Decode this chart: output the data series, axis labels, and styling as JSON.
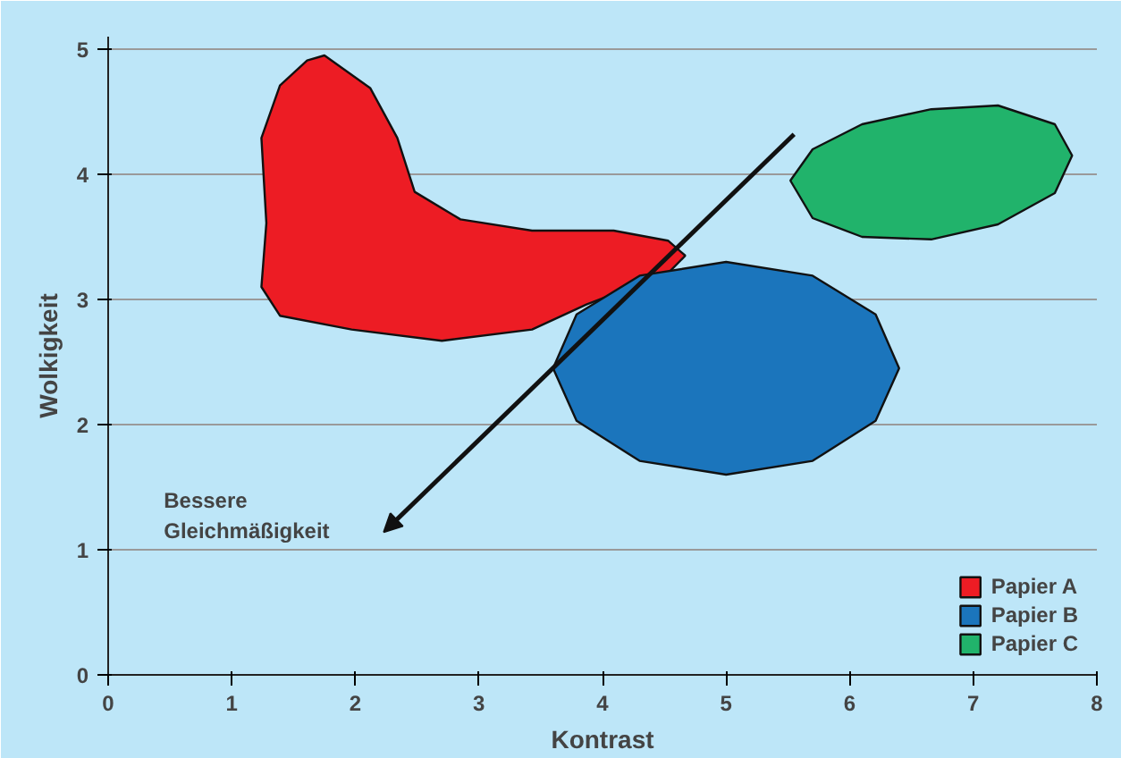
{
  "chart_data": {
    "type": "area",
    "xlabel": "Kontrast",
    "ylabel": "Wolkigkeit",
    "xlim": [
      0,
      8
    ],
    "ylim": [
      0,
      5.1
    ],
    "xticks": [
      0,
      1,
      2,
      3,
      4,
      5,
      6,
      7,
      8
    ],
    "yticks": [
      0,
      1,
      2,
      3,
      4,
      5
    ],
    "grid": "y",
    "legend": "bottom right",
    "annotations": [
      "Bessere\nGleichmäßigkeit"
    ],
    "series": [
      {
        "name": "Papier A",
        "color": "#ed1c24",
        "x": [
          1.75,
          2.12,
          2.34,
          2.48,
          2.85,
          3.43,
          4.09,
          4.53,
          4.67,
          4.53,
          3.87,
          3.43,
          2.7,
          1.97,
          1.39,
          1.24,
          1.28,
          1.24,
          1.39,
          1.61
        ],
        "values": [
          4.95,
          4.69,
          4.29,
          3.86,
          3.64,
          3.55,
          3.55,
          3.47,
          3.35,
          3.21,
          2.96,
          2.76,
          2.67,
          2.76,
          2.87,
          3.1,
          3.61,
          4.29,
          4.71,
          4.91
        ]
      },
      {
        "name": "Papier B",
        "color": "#1b75bc",
        "x": [
          6.4,
          6.21,
          5.7,
          5.0,
          4.3,
          3.79,
          3.6,
          3.79,
          4.3,
          5.0,
          5.7,
          6.21
        ],
        "values": [
          2.45,
          2.88,
          3.19,
          3.3,
          3.19,
          2.88,
          2.45,
          2.03,
          1.71,
          1.6,
          1.71,
          2.03
        ]
      },
      {
        "name": "Papier C",
        "color": "#21b36b",
        "x": [
          7.8,
          7.66,
          7.2,
          6.66,
          6.1,
          5.7,
          5.52,
          5.7,
          6.1,
          6.66,
          7.2,
          7.66
        ],
        "values": [
          4.15,
          4.4,
          4.55,
          4.52,
          4.4,
          4.2,
          3.95,
          3.65,
          3.5,
          3.48,
          3.6,
          3.85
        ]
      }
    ]
  }
}
